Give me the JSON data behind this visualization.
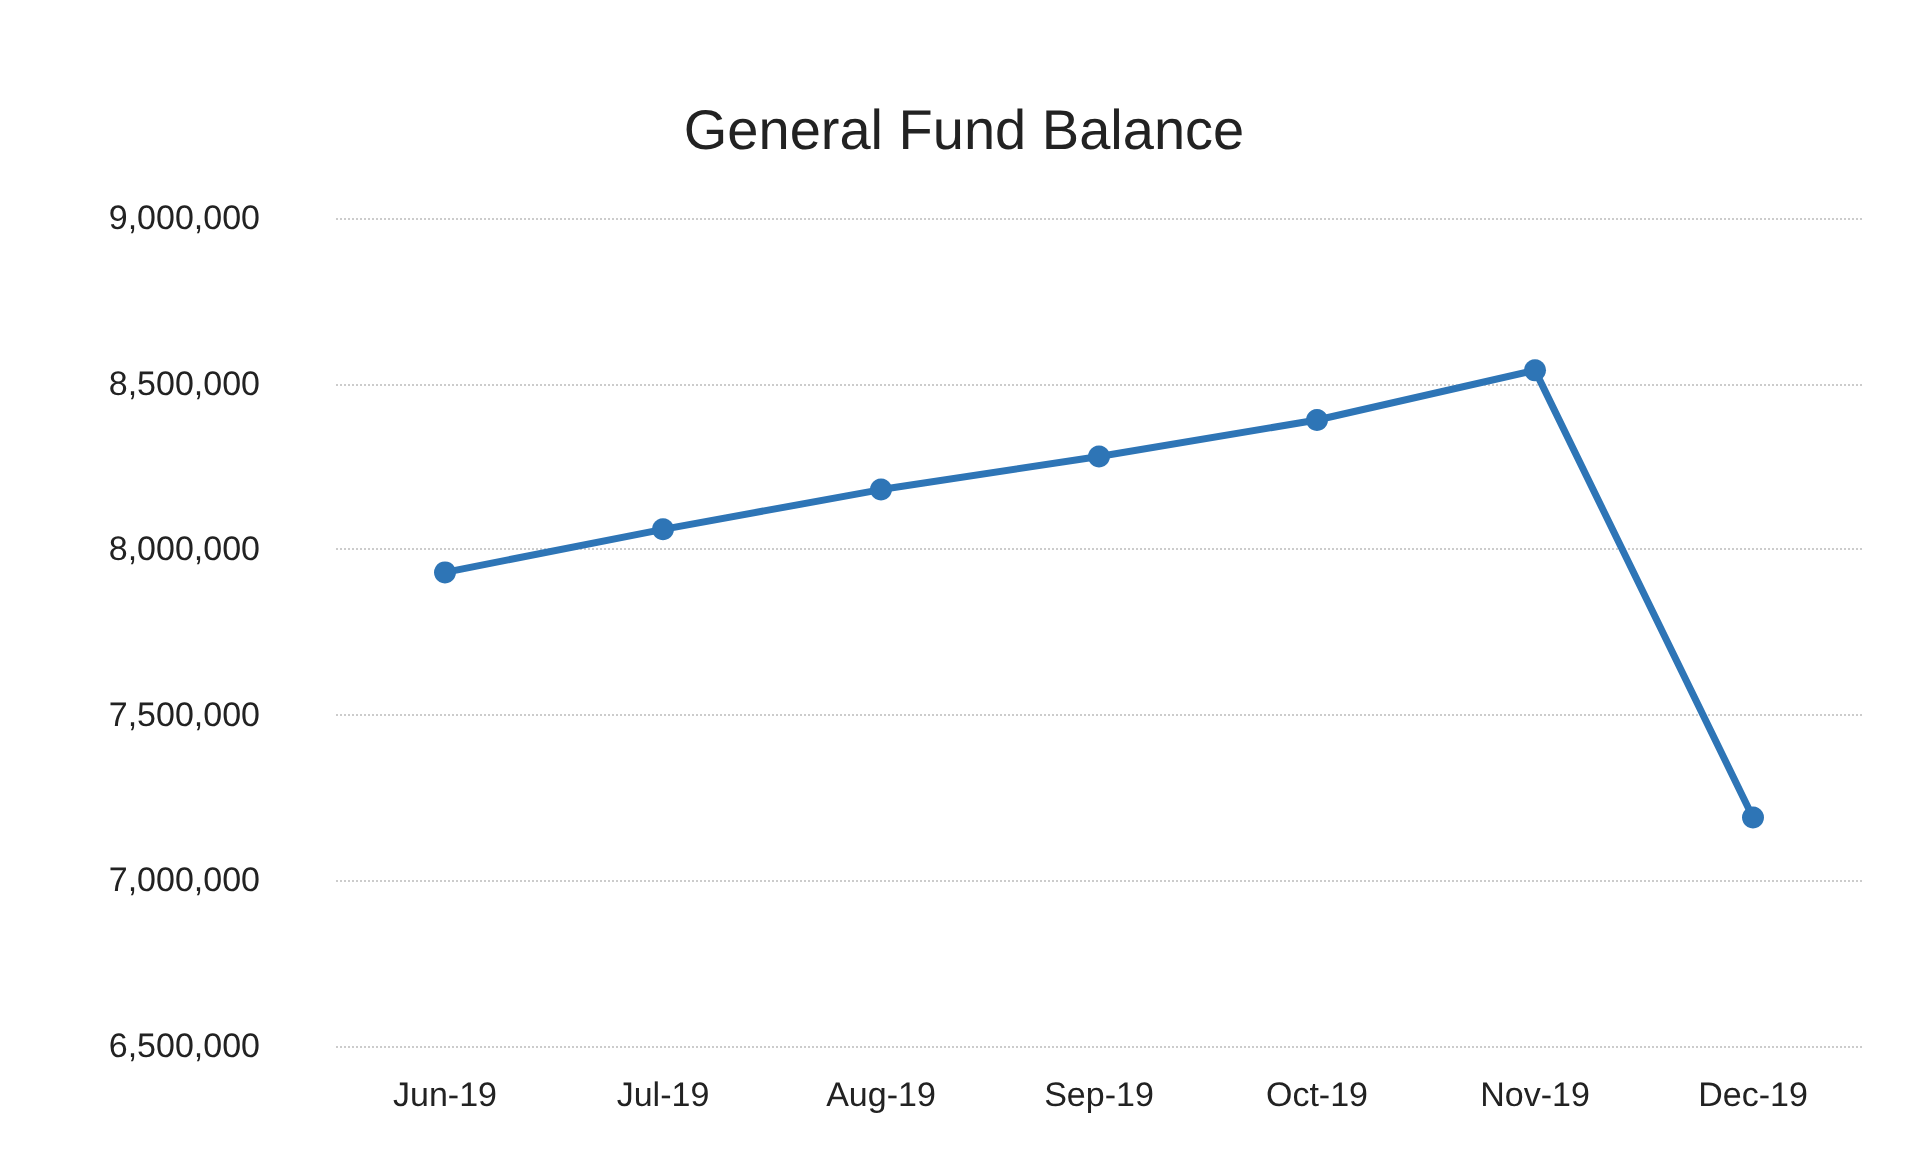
{
  "chart_data": {
    "type": "line",
    "title": "General Fund Balance",
    "categories": [
      "Jun-19",
      "Jul-19",
      "Aug-19",
      "Sep-19",
      "Oct-19",
      "Nov-19",
      "Dec-19"
    ],
    "series": [
      {
        "color": "#2e75b6",
        "values": [
          7930000,
          8060000,
          8180000,
          8280000,
          8390000,
          8540000,
          7190000
        ]
      }
    ],
    "ylim": [
      6500000,
      9000000
    ],
    "yticks": [
      {
        "value": 6500000,
        "label": "6,500,000"
      },
      {
        "value": 7000000,
        "label": "7,000,000"
      },
      {
        "value": 7500000,
        "label": "7,500,000"
      },
      {
        "value": 8000000,
        "label": "8,000,000"
      },
      {
        "value": 8500000,
        "label": "8,500,000"
      },
      {
        "value": 9000000,
        "label": "9,000,000"
      }
    ],
    "grid": "y",
    "marker": "circle",
    "line_style": "solid"
  }
}
